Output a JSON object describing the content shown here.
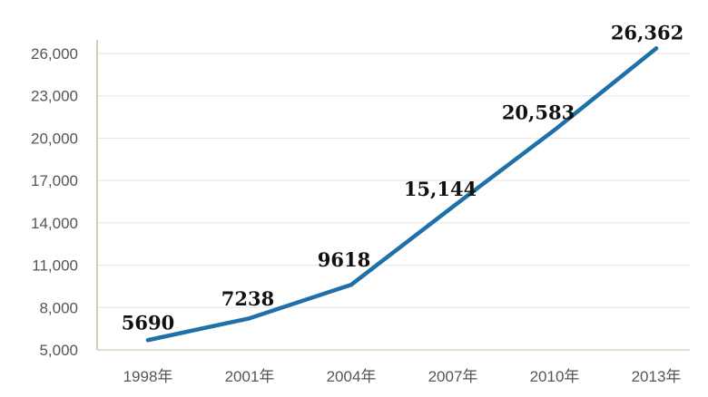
{
  "chart_data": {
    "type": "line",
    "categories": [
      "1998年",
      "2001年",
      "2004年",
      "2007年",
      "2010年",
      "2013年"
    ],
    "series": [
      {
        "values": [
          5690,
          7238,
          9618,
          15144,
          20583,
          26362
        ],
        "color": "#1f6fa8"
      }
    ],
    "data_labels": [
      "5690",
      "7238",
      "9618",
      "15,144",
      "20,583",
      "26,362"
    ],
    "y_ticks": [
      "5,000",
      "8,000",
      "11,000",
      "14,000",
      "17,000",
      "20,000",
      "23,000",
      "26,000"
    ],
    "ylim": [
      5000,
      26000
    ],
    "grid": true,
    "grid_color": "#e6e6e6",
    "axis_color": "#c9bda0",
    "title": "",
    "xlabel": "",
    "ylabel": ""
  }
}
